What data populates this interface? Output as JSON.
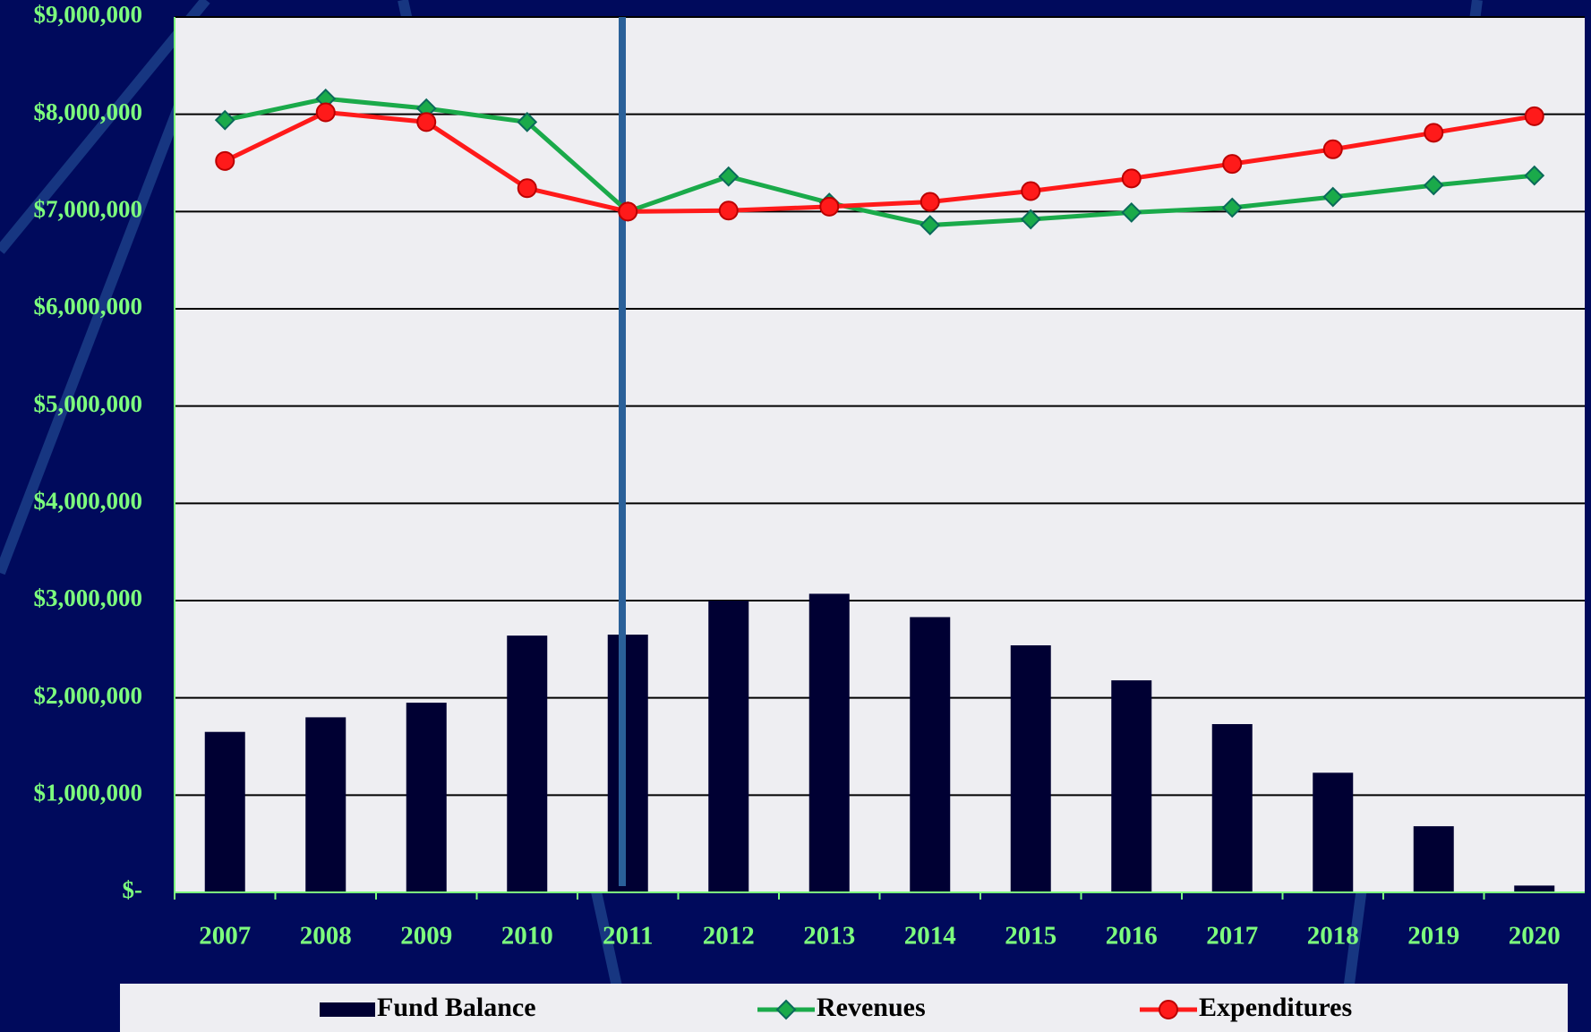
{
  "chart_data": {
    "type": "bar-line",
    "categories": [
      "2007",
      "2008",
      "2009",
      "2010",
      "2011",
      "2012",
      "2013",
      "2014",
      "2015",
      "2016",
      "2017",
      "2018",
      "2019",
      "2020"
    ],
    "series": [
      {
        "name": "Fund Balance",
        "type": "bar",
        "color": "#000033",
        "values": [
          1650000,
          1800000,
          1950000,
          2640000,
          2650000,
          3000000,
          3070000,
          2830000,
          2540000,
          2180000,
          1730000,
          1230000,
          680000,
          70000
        ]
      },
      {
        "name": "Revenues",
        "type": "line",
        "marker": "diamond",
        "color": "#1aaa4a",
        "values": [
          7940000,
          8160000,
          8060000,
          7920000,
          7000000,
          7360000,
          7090000,
          6860000,
          6920000,
          6990000,
          7040000,
          7150000,
          7270000,
          7370000
        ]
      },
      {
        "name": "Expenditures",
        "type": "line",
        "marker": "circle",
        "color": "#ff1a1a",
        "values": [
          7520000,
          8020000,
          7920000,
          7240000,
          7000000,
          7010000,
          7050000,
          7100000,
          7210000,
          7340000,
          7490000,
          7640000,
          7810000,
          7980000
        ]
      }
    ],
    "ylim": [
      0,
      9000000
    ],
    "yticks": [
      {
        "value": 0,
        "label": "$-"
      },
      {
        "value": 1000000,
        "label": "$1,000,000"
      },
      {
        "value": 2000000,
        "label": "$2,000,000"
      },
      {
        "value": 3000000,
        "label": "$3,000,000"
      },
      {
        "value": 4000000,
        "label": "$4,000,000"
      },
      {
        "value": 5000000,
        "label": "$5,000,000"
      },
      {
        "value": 6000000,
        "label": "$6,000,000"
      },
      {
        "value": 7000000,
        "label": "$7,000,000"
      },
      {
        "value": 8000000,
        "label": "$8,000,000"
      },
      {
        "value": 9000000,
        "label": "$9,000,000"
      }
    ],
    "grid": true,
    "legend": "bottom"
  }
}
